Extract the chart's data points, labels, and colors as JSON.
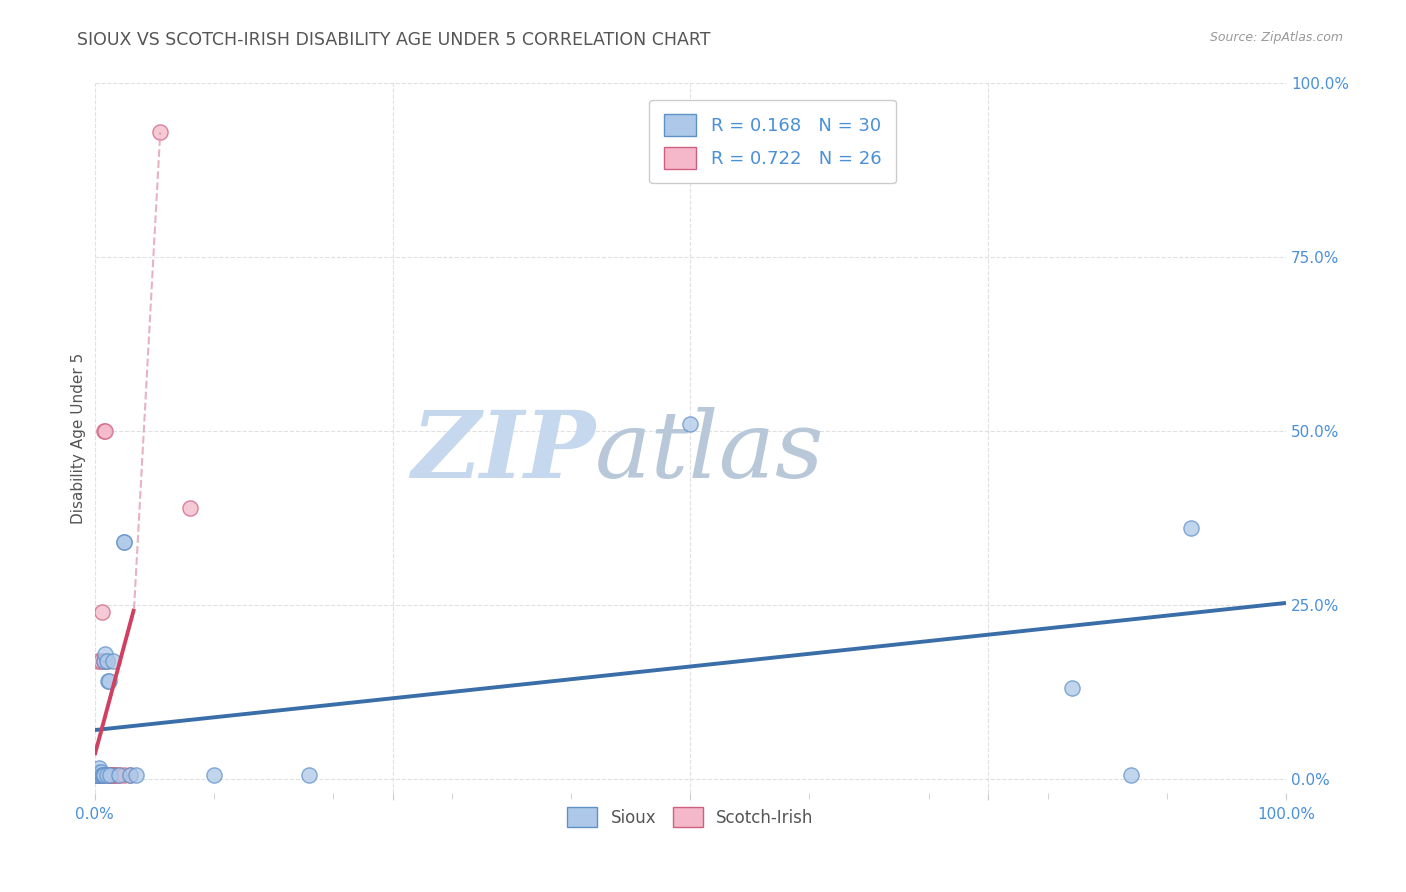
{
  "title": "SIOUX VS SCOTCH-IRISH DISABILITY AGE UNDER 5 CORRELATION CHART",
  "source": "Source: ZipAtlas.com",
  "ylabel": "Disability Age Under 5",
  "sioux_R": 0.168,
  "sioux_N": 30,
  "scotch_R": 0.722,
  "scotch_N": 26,
  "sioux_color": "#adc8e8",
  "scotch_color": "#f4b8ca",
  "sioux_edge_color": "#6090c8",
  "scotch_edge_color": "#d06080",
  "sioux_line_color": "#3a6ea8",
  "scotch_line_color": "#d04060",
  "scotch_dashed_color": "#e0a0b0",
  "watermark_zip_color": "#c5d8ed",
  "watermark_atlas_color": "#b8c8d8",
  "title_color": "#555555",
  "axis_label_color": "#4a90d9",
  "grid_color": "#e0e0e0",
  "background_color": "#ffffff",
  "sioux_x": [
    0.001,
    0.002,
    0.003,
    0.003,
    0.004,
    0.004,
    0.005,
    0.005,
    0.006,
    0.007,
    0.008,
    0.008,
    0.009,
    0.01,
    0.01,
    0.011,
    0.012,
    0.013,
    0.015,
    0.02,
    0.025,
    0.025,
    0.03,
    0.035,
    0.1,
    0.18,
    0.5,
    0.82,
    0.87,
    0.92
  ],
  "sioux_y": [
    0.005,
    0.005,
    0.005,
    0.01,
    0.01,
    0.015,
    0.005,
    0.01,
    0.005,
    0.005,
    0.005,
    0.17,
    0.18,
    0.005,
    0.17,
    0.14,
    0.14,
    0.005,
    0.17,
    0.005,
    0.34,
    0.34,
    0.005,
    0.005,
    0.005,
    0.005,
    0.51,
    0.13,
    0.005,
    0.36
  ],
  "scotch_x": [
    0.001,
    0.002,
    0.002,
    0.003,
    0.003,
    0.004,
    0.005,
    0.005,
    0.006,
    0.007,
    0.008,
    0.008,
    0.009,
    0.01,
    0.012,
    0.012,
    0.013,
    0.014,
    0.015,
    0.016,
    0.018,
    0.02,
    0.025,
    0.03,
    0.08,
    0.055
  ],
  "scotch_y": [
    0.005,
    0.005,
    0.005,
    0.005,
    0.17,
    0.005,
    0.17,
    0.005,
    0.24,
    0.005,
    0.17,
    0.5,
    0.5,
    0.17,
    0.005,
    0.005,
    0.005,
    0.005,
    0.005,
    0.005,
    0.005,
    0.005,
    0.005,
    0.005,
    0.39,
    0.93
  ],
  "xlim": [
    0.0,
    1.0
  ],
  "ylim": [
    -0.02,
    1.0
  ],
  "xtick_positions": [
    0.0,
    0.25,
    0.5,
    0.75,
    1.0
  ],
  "ytick_positions": [
    0.0,
    0.25,
    0.5,
    0.75,
    1.0
  ],
  "minor_xtick_positions": [
    0.1,
    0.2,
    0.3,
    0.4,
    0.6,
    0.7,
    0.8,
    0.9
  ]
}
